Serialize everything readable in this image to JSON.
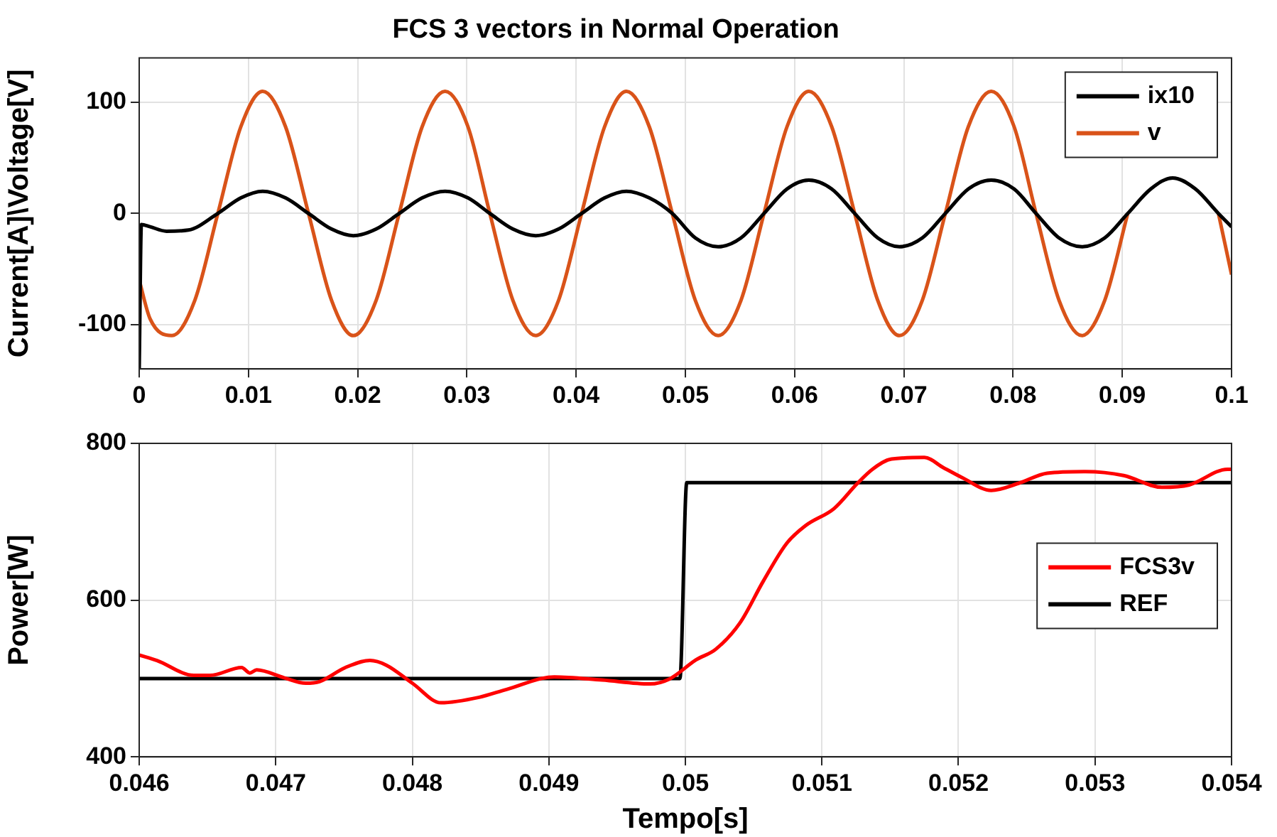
{
  "chart_data": [
    {
      "type": "line",
      "title": "FCS 3 vectors in Normal Operation",
      "ylabel": "Current[A]\\Voltage[V]",
      "xlim": [
        0,
        0.1
      ],
      "xticks": [
        0,
        0.01,
        0.02,
        0.03,
        0.04,
        0.05,
        0.06,
        0.07,
        0.08,
        0.09,
        0.1
      ],
      "ylim": [
        -140,
        140
      ],
      "yticks": [
        -100,
        0,
        100
      ],
      "grid": true,
      "legend": "top right",
      "series": [
        {
          "name": "ix10",
          "color": "#000000",
          "x": [
            0,
            0.0002,
            0.001,
            0.0025,
            0.0045,
            0.0072,
            0.0093,
            0.0113,
            0.0134,
            0.0155,
            0.0176,
            0.0196,
            0.0217,
            0.0238,
            0.0259,
            0.028,
            0.0301,
            0.0321,
            0.0342,
            0.0363,
            0.0384,
            0.0405,
            0.0426,
            0.0446,
            0.0467,
            0.0488,
            0.0509,
            0.053,
            0.0551,
            0.0572,
            0.0593,
            0.0613,
            0.0634,
            0.0655,
            0.0676,
            0.0696,
            0.0717,
            0.0738,
            0.0759,
            0.078,
            0.0801,
            0.0821,
            0.0842,
            0.0863,
            0.0884,
            0.0905,
            0.0926,
            0.0946,
            0.0967,
            0.0988,
            0.1
          ],
          "values": [
            -140,
            -10,
            -12,
            -16,
            -15,
            0,
            14,
            20,
            14,
            0,
            -14,
            -20,
            -14,
            0,
            14,
            20,
            14,
            0,
            -14,
            -20,
            -14,
            0,
            14,
            20,
            14,
            0,
            -22,
            -30,
            -22,
            0,
            22,
            30,
            22,
            0,
            -22,
            -30,
            -22,
            0,
            22,
            30,
            22,
            0,
            -22,
            -30,
            -22,
            0,
            22,
            32,
            22,
            0,
            -12
          ]
        },
        {
          "name": "v",
          "color": "#d95319",
          "x": [
            0,
            0.001,
            0.003,
            0.0051,
            0.0072,
            0.0093,
            0.0113,
            0.0134,
            0.0155,
            0.0176,
            0.0196,
            0.0217,
            0.0238,
            0.0259,
            0.028,
            0.0301,
            0.0321,
            0.0342,
            0.0363,
            0.0384,
            0.0405,
            0.0426,
            0.0446,
            0.0467,
            0.0488,
            0.0509,
            0.053,
            0.0551,
            0.0572,
            0.0593,
            0.0613,
            0.0634,
            0.0655,
            0.0676,
            0.0696,
            0.0717,
            0.0738,
            0.0759,
            0.078,
            0.0801,
            0.0821,
            0.0842,
            0.0863,
            0.0884,
            0.0905,
            0.0926,
            0.0946,
            0.0967,
            0.0988,
            0.1
          ],
          "values": [
            -60,
            -95,
            -110,
            -78,
            0,
            78,
            110,
            78,
            0,
            -78,
            -110,
            -78,
            0,
            78,
            110,
            78,
            0,
            -78,
            -110,
            -78,
            0,
            78,
            110,
            78,
            0,
            -78,
            -110,
            -78,
            0,
            78,
            110,
            78,
            0,
            -78,
            -110,
            -78,
            0,
            78,
            110,
            78,
            0,
            -78,
            -110,
            -78,
            0,
            null,
            null,
            null,
            0,
            -55
          ]
        }
      ]
    },
    {
      "type": "line",
      "xlabel": "Tempo[s]",
      "ylabel": "Power[W]",
      "xlim": [
        0.046,
        0.054
      ],
      "xticks": [
        0.046,
        0.047,
        0.048,
        0.049,
        0.05,
        0.051,
        0.052,
        0.053,
        0.054
      ],
      "ylim": [
        400,
        800
      ],
      "yticks": [
        400,
        600,
        800
      ],
      "grid": true,
      "legend": "right",
      "series": [
        {
          "name": "FCS3v",
          "color": "#ff0000",
          "x": [
            0.046,
            0.04613,
            0.0464,
            0.04652,
            0.04675,
            0.04681,
            0.04686,
            0.04706,
            0.04722,
            0.04732,
            0.04751,
            0.04769,
            0.04781,
            0.048,
            0.04821,
            0.04849,
            0.04869,
            0.04904,
            0.04939,
            0.04974,
            0.04988,
            0.05008,
            0.05022,
            0.0504,
            0.05057,
            0.05074,
            0.05088,
            0.05109,
            0.05126,
            0.05137,
            0.05151,
            0.05175,
            0.05189,
            0.05203,
            0.05224,
            0.05244,
            0.05265,
            0.05293,
            0.05321,
            0.05349,
            0.05369,
            0.05397,
            0.054
          ],
          "values": [
            530,
            523,
            504,
            504,
            514,
            507,
            511,
            501,
            494,
            496,
            514,
            523,
            517,
            494,
            469,
            476,
            486,
            502,
            498,
            493,
            499,
            524,
            537,
            571,
            624,
            672,
            695,
            717,
            749,
            767,
            780,
            782,
            769,
            756,
            740,
            749,
            762,
            764,
            759,
            744,
            747,
            767,
            767
          ]
        },
        {
          "name": "REF",
          "color": "#000000",
          "x": [
            0.046,
            0.04996,
            0.05001,
            0.054
          ],
          "values": [
            500,
            500,
            750,
            750
          ]
        }
      ]
    }
  ]
}
